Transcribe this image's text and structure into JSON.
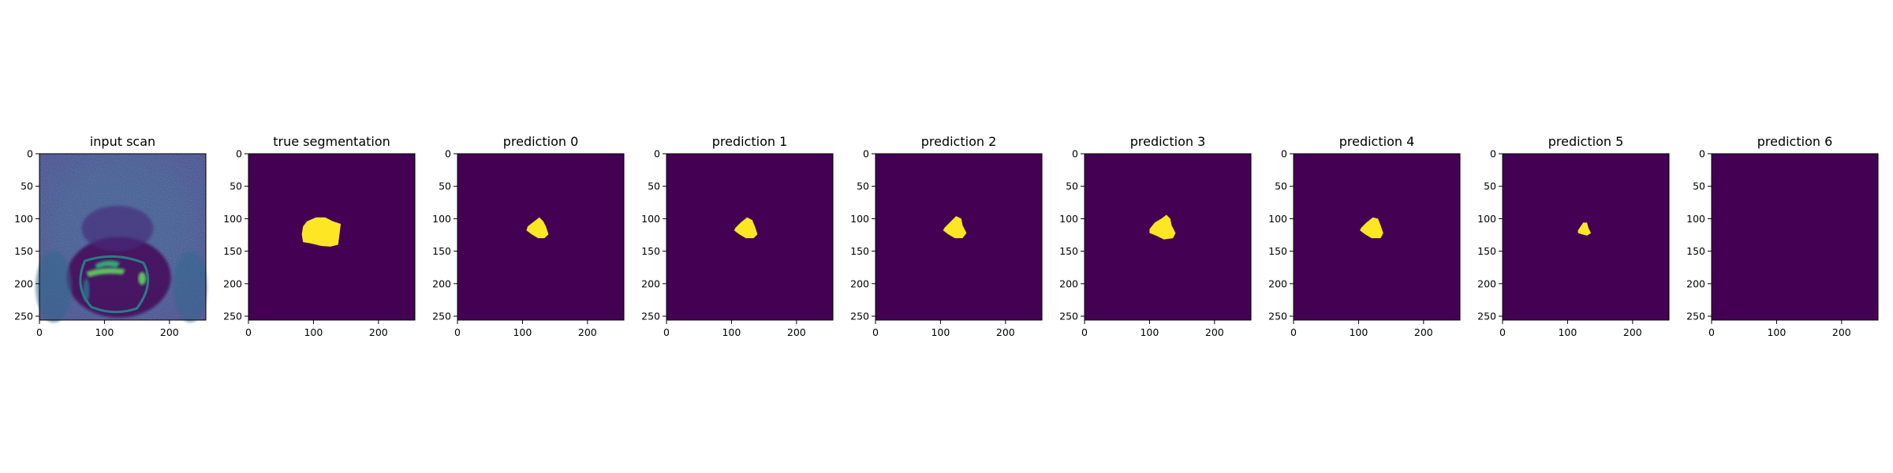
{
  "figure": {
    "background": "#ffffff",
    "axis_color": "#000000",
    "colormap": "viridis",
    "colors": {
      "background_mask": "#440154",
      "foreground_mask": "#fde725"
    }
  },
  "chart_data": [
    {
      "type": "heatmap",
      "title": "input scan",
      "content": "mri-scan",
      "xlim": [
        0,
        256
      ],
      "ylim": [
        256,
        0
      ],
      "xticks": [
        0,
        100,
        200
      ],
      "yticks": [
        0,
        50,
        100,
        150,
        200,
        250
      ],
      "regions": []
    },
    {
      "type": "heatmap",
      "title": "true segmentation",
      "content": "mask",
      "xlim": [
        0,
        256
      ],
      "ylim": [
        256,
        0
      ],
      "xticks": [
        0,
        100,
        200
      ],
      "yticks": [
        0,
        50,
        100,
        150,
        200,
        250
      ],
      "regions": [
        {
          "points": [
            [
              90,
              104
            ],
            [
              104,
              98
            ],
            [
              118,
              98
            ],
            [
              130,
              104
            ],
            [
              142,
              108
            ],
            [
              140,
              124
            ],
            [
              138,
              140
            ],
            [
              126,
              143
            ],
            [
              112,
              142
            ],
            [
              96,
              138
            ],
            [
              84,
              136
            ],
            [
              82,
              124
            ],
            [
              84,
              112
            ]
          ]
        }
      ]
    },
    {
      "type": "heatmap",
      "title": "prediction 0",
      "content": "mask",
      "xlim": [
        0,
        256
      ],
      "ylim": [
        256,
        0
      ],
      "xticks": [
        0,
        100,
        200
      ],
      "yticks": [
        0,
        50,
        100,
        150,
        200,
        250
      ],
      "regions": [
        {
          "points": [
            [
              108,
              112
            ],
            [
              118,
              104
            ],
            [
              126,
              98
            ],
            [
              132,
              104
            ],
            [
              136,
              112
            ],
            [
              140,
              124
            ],
            [
              134,
              130
            ],
            [
              124,
              130
            ],
            [
              114,
              124
            ],
            [
              106,
              118
            ]
          ]
        }
      ]
    },
    {
      "type": "heatmap",
      "title": "prediction 1",
      "content": "mask",
      "xlim": [
        0,
        256
      ],
      "ylim": [
        256,
        0
      ],
      "xticks": [
        0,
        100,
        200
      ],
      "yticks": [
        0,
        50,
        100,
        150,
        200,
        250
      ],
      "regions": [
        {
          "points": [
            [
              106,
              114
            ],
            [
              114,
              106
            ],
            [
              124,
              98
            ],
            [
              132,
              102
            ],
            [
              136,
              112
            ],
            [
              140,
              124
            ],
            [
              134,
              130
            ],
            [
              122,
              130
            ],
            [
              112,
              124
            ],
            [
              104,
              118
            ]
          ]
        }
      ]
    },
    {
      "type": "heatmap",
      "title": "prediction 2",
      "content": "mask",
      "xlim": [
        0,
        256
      ],
      "ylim": [
        256,
        0
      ],
      "xticks": [
        0,
        100,
        200
      ],
      "yticks": [
        0,
        50,
        100,
        150,
        200,
        250
      ],
      "regions": [
        {
          "points": [
            [
              106,
              114
            ],
            [
              114,
              106
            ],
            [
              124,
              96
            ],
            [
              132,
              100
            ],
            [
              134,
              110
            ],
            [
              140,
              122
            ],
            [
              134,
              130
            ],
            [
              122,
              130
            ],
            [
              112,
              124
            ],
            [
              104,
              118
            ]
          ]
        }
      ]
    },
    {
      "type": "heatmap",
      "title": "prediction 3",
      "content": "mask",
      "xlim": [
        0,
        256
      ],
      "ylim": [
        256,
        0
      ],
      "xticks": [
        0,
        100,
        200
      ],
      "yticks": [
        0,
        50,
        100,
        150,
        200,
        250
      ],
      "regions": [
        {
          "points": [
            [
              100,
              116
            ],
            [
              108,
              106
            ],
            [
              118,
              100
            ],
            [
              126,
              94
            ],
            [
              132,
              100
            ],
            [
              134,
              110
            ],
            [
              140,
              122
            ],
            [
              136,
              130
            ],
            [
              122,
              132
            ],
            [
              110,
              126
            ],
            [
              100,
              122
            ]
          ]
        }
      ]
    },
    {
      "type": "heatmap",
      "title": "prediction 4",
      "content": "mask",
      "xlim": [
        0,
        256
      ],
      "ylim": [
        256,
        0
      ],
      "xticks": [
        0,
        100,
        200
      ],
      "yticks": [
        0,
        50,
        100,
        150,
        200,
        250
      ],
      "regions": [
        {
          "points": [
            [
              104,
              114
            ],
            [
              112,
              106
            ],
            [
              122,
              98
            ],
            [
              130,
              100
            ],
            [
              134,
              110
            ],
            [
              138,
              122
            ],
            [
              134,
              130
            ],
            [
              120,
              130
            ],
            [
              110,
              124
            ],
            [
              102,
              118
            ]
          ]
        }
      ]
    },
    {
      "type": "heatmap",
      "title": "prediction 5",
      "content": "mask",
      "xlim": [
        0,
        256
      ],
      "ylim": [
        256,
        0
      ],
      "xticks": [
        0,
        100,
        200
      ],
      "yticks": [
        0,
        50,
        100,
        150,
        200,
        250
      ],
      "regions": [
        {
          "points": [
            [
              116,
              118
            ],
            [
              120,
              112
            ],
            [
              124,
              106
            ],
            [
              130,
              106
            ],
            [
              132,
              114
            ],
            [
              136,
              122
            ],
            [
              130,
              126
            ],
            [
              122,
              124
            ],
            [
              116,
              122
            ]
          ]
        }
      ]
    },
    {
      "type": "heatmap",
      "title": "prediction 6",
      "content": "mask",
      "xlim": [
        0,
        256
      ],
      "ylim": [
        256,
        0
      ],
      "xticks": [
        0,
        100,
        200
      ],
      "yticks": [
        0,
        50,
        100,
        150,
        200,
        250
      ],
      "regions": []
    }
  ]
}
